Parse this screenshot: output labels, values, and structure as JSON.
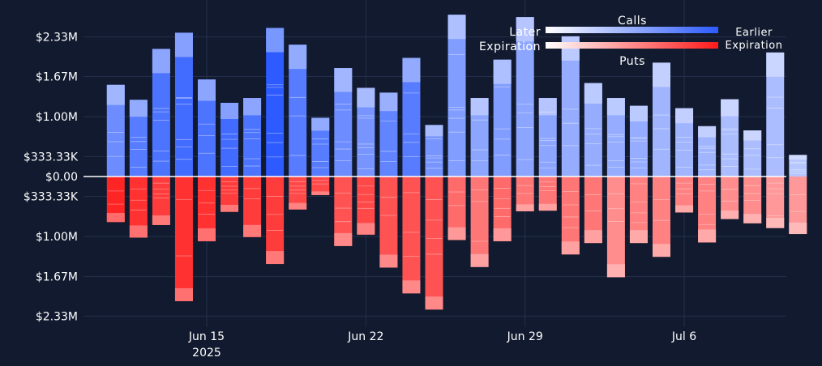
{
  "chart_data": {
    "type": "bar",
    "subtype": "diverging-stacked-bar",
    "x_ticks": [
      {
        "date": "2025-06-15",
        "label": "Jun 15",
        "sublabel": "2025"
      },
      {
        "date": "2025-06-22",
        "label": "Jun 22",
        "sublabel": ""
      },
      {
        "date": "2025-06-29",
        "label": "Jun 29",
        "sublabel": ""
      },
      {
        "date": "2025-07-06",
        "label": "Jul 6",
        "sublabel": ""
      }
    ],
    "y_ticks": [
      {
        "value": 2330000,
        "label": "$2.33M"
      },
      {
        "value": 1670000,
        "label": "$1.67M"
      },
      {
        "value": 1000000,
        "label": "$1.00M"
      },
      {
        "value": 333330,
        "label": "$333.33K"
      },
      {
        "value": 0,
        "label": "$0.00"
      },
      {
        "value": -333330,
        "label": "$333.33K"
      },
      {
        "value": -1000000,
        "label": "$1.00M"
      },
      {
        "value": -1670000,
        "label": "$1.67M"
      },
      {
        "value": -2330000,
        "label": "$2.33M"
      }
    ],
    "ylim": [
      -2450000,
      2700000
    ],
    "grid": true,
    "legend_position": "top-right",
    "series": [
      {
        "name": "Calls",
        "gradient_left_label": "Later",
        "gradient_right_label": "Earlier",
        "color_start": "#ffffff",
        "color_end": "#2d5bff"
      },
      {
        "name": "Puts",
        "gradient_left_label": "Expiration",
        "gradient_right_label": "Expiration",
        "color_start": "#ffffff",
        "color_end": "#ff1a1a"
      }
    ],
    "bars": [
      {
        "date": "2025-06-11",
        "calls": 1530000,
        "puts": 760000,
        "call_intensity": 0.7,
        "put_intensity": 0.95
      },
      {
        "date": "2025-06-12",
        "calls": 1280000,
        "puts": 1020000,
        "call_intensity": 0.8,
        "put_intensity": 0.9
      },
      {
        "date": "2025-06-13",
        "calls": 2130000,
        "puts": 810000,
        "call_intensity": 0.85,
        "put_intensity": 0.85
      },
      {
        "date": "2025-06-14",
        "calls": 2400000,
        "puts": 2080000,
        "call_intensity": 0.9,
        "put_intensity": 0.9
      },
      {
        "date": "2025-06-15",
        "calls": 1620000,
        "puts": 1080000,
        "call_intensity": 0.85,
        "put_intensity": 0.9
      },
      {
        "date": "2025-06-16",
        "calls": 1230000,
        "puts": 590000,
        "call_intensity": 0.9,
        "put_intensity": 0.85
      },
      {
        "date": "2025-06-17",
        "calls": 1310000,
        "puts": 1010000,
        "call_intensity": 0.85,
        "put_intensity": 0.85
      },
      {
        "date": "2025-06-18",
        "calls": 2480000,
        "puts": 1460000,
        "call_intensity": 1.0,
        "put_intensity": 0.85
      },
      {
        "date": "2025-06-19",
        "calls": 2200000,
        "puts": 550000,
        "call_intensity": 0.8,
        "put_intensity": 0.8
      },
      {
        "date": "2025-06-20",
        "calls": 980000,
        "puts": 310000,
        "call_intensity": 0.8,
        "put_intensity": 0.8
      },
      {
        "date": "2025-06-21",
        "calls": 1810000,
        "puts": 1160000,
        "call_intensity": 0.7,
        "put_intensity": 0.75
      },
      {
        "date": "2025-06-22",
        "calls": 1480000,
        "puts": 970000,
        "call_intensity": 0.65,
        "put_intensity": 0.8
      },
      {
        "date": "2025-06-23",
        "calls": 1400000,
        "puts": 1520000,
        "call_intensity": 0.75,
        "put_intensity": 0.75
      },
      {
        "date": "2025-06-24",
        "calls": 1980000,
        "puts": 1950000,
        "call_intensity": 0.8,
        "put_intensity": 0.75
      },
      {
        "date": "2025-06-25",
        "calls": 860000,
        "puts": 2220000,
        "call_intensity": 0.65,
        "put_intensity": 0.75
      },
      {
        "date": "2025-06-26",
        "calls": 2700000,
        "puts": 1060000,
        "call_intensity": 0.6,
        "put_intensity": 0.65
      },
      {
        "date": "2025-06-27",
        "calls": 1310000,
        "puts": 1510000,
        "call_intensity": 0.55,
        "put_intensity": 0.6
      },
      {
        "date": "2025-06-28",
        "calls": 1950000,
        "puts": 1080000,
        "call_intensity": 0.6,
        "put_intensity": 0.65
      },
      {
        "date": "2025-06-29",
        "calls": 2660000,
        "puts": 580000,
        "call_intensity": 0.55,
        "put_intensity": 0.6
      },
      {
        "date": "2025-06-30",
        "calls": 1310000,
        "puts": 570000,
        "call_intensity": 0.55,
        "put_intensity": 0.6
      },
      {
        "date": "2025-07-01",
        "calls": 2340000,
        "puts": 1300000,
        "call_intensity": 0.5,
        "put_intensity": 0.6
      },
      {
        "date": "2025-07-02",
        "calls": 1560000,
        "puts": 1110000,
        "call_intensity": 0.5,
        "put_intensity": 0.6
      },
      {
        "date": "2025-07-03",
        "calls": 1310000,
        "puts": 1680000,
        "call_intensity": 0.5,
        "put_intensity": 0.5
      },
      {
        "date": "2025-07-04",
        "calls": 1180000,
        "puts": 1110000,
        "call_intensity": 0.5,
        "put_intensity": 0.55
      },
      {
        "date": "2025-07-05",
        "calls": 1900000,
        "puts": 1340000,
        "call_intensity": 0.45,
        "put_intensity": 0.55
      },
      {
        "date": "2025-07-06",
        "calls": 1140000,
        "puts": 600000,
        "call_intensity": 0.45,
        "put_intensity": 0.55
      },
      {
        "date": "2025-07-07",
        "calls": 840000,
        "puts": 1100000,
        "call_intensity": 0.45,
        "put_intensity": 0.55
      },
      {
        "date": "2025-07-08",
        "calls": 1290000,
        "puts": 710000,
        "call_intensity": 0.4,
        "put_intensity": 0.5
      },
      {
        "date": "2025-07-09",
        "calls": 770000,
        "puts": 780000,
        "call_intensity": 0.4,
        "put_intensity": 0.5
      },
      {
        "date": "2025-07-10",
        "calls": 2070000,
        "puts": 860000,
        "call_intensity": 0.4,
        "put_intensity": 0.45
      },
      {
        "date": "2025-07-11",
        "calls": 360000,
        "puts": 960000,
        "call_intensity": 0.35,
        "put_intensity": 0.45
      }
    ]
  }
}
